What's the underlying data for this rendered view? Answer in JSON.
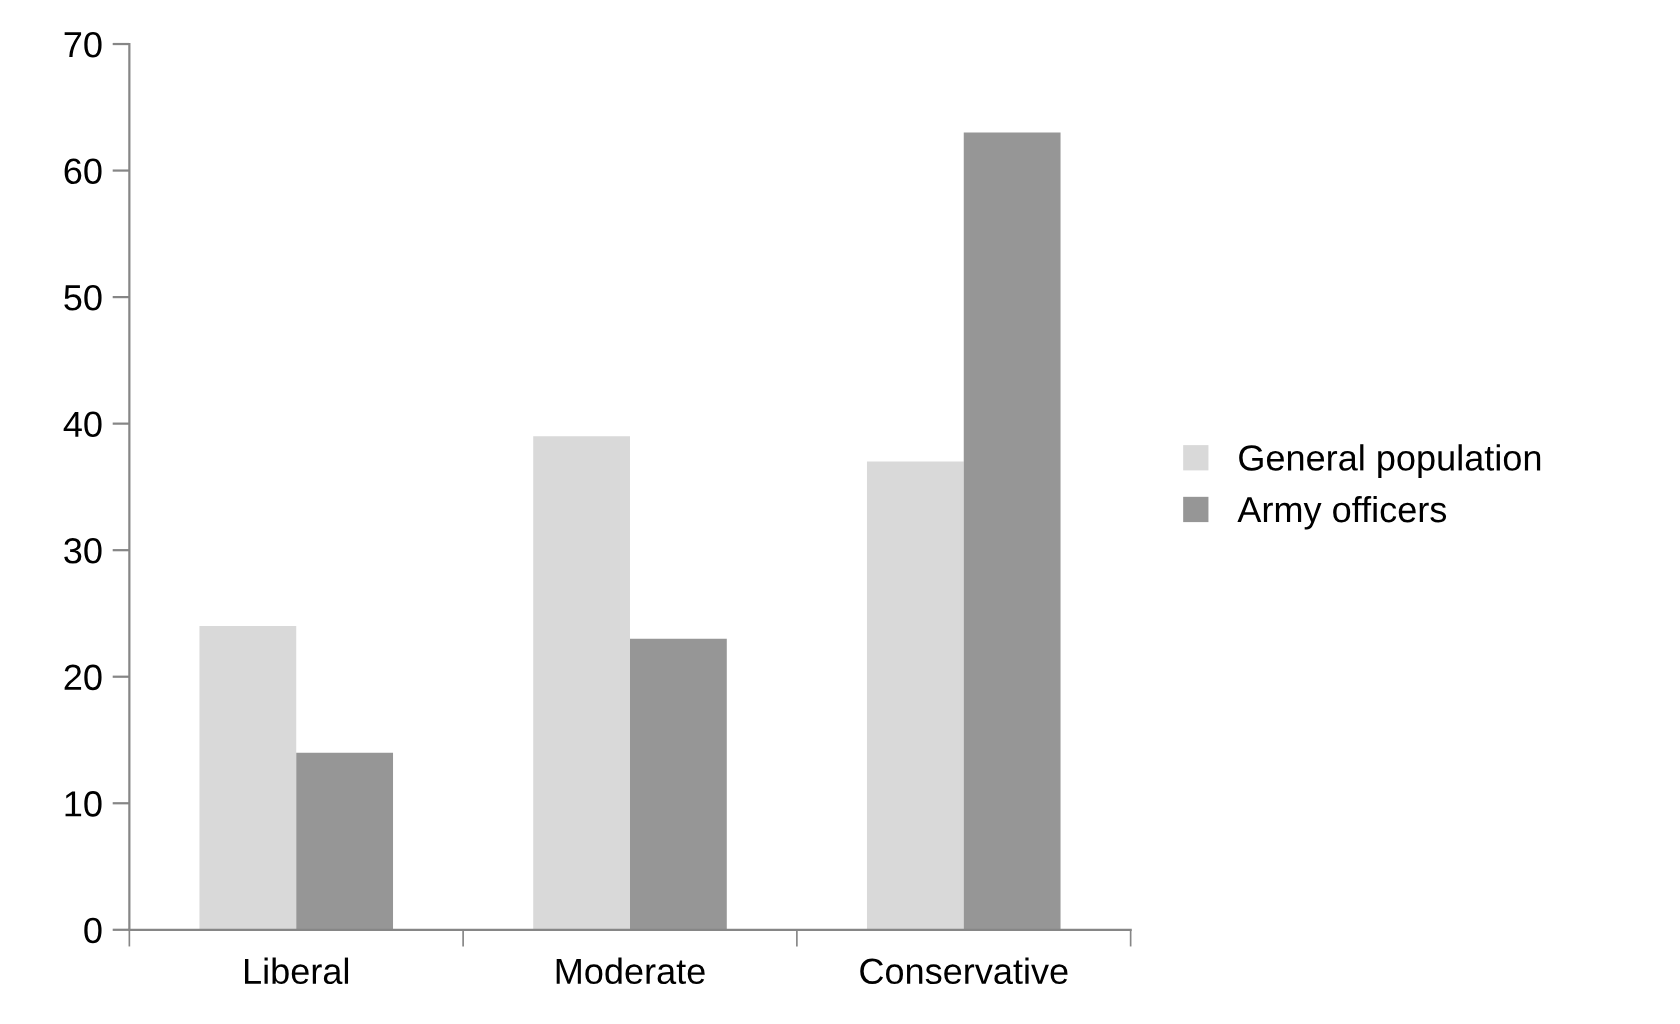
{
  "chart_data": {
    "type": "bar",
    "categories": [
      "Liberal",
      "Moderate",
      "Conservative"
    ],
    "series": [
      {
        "name": "General population",
        "color": "#d9d9d9",
        "values": [
          24,
          39,
          37
        ]
      },
      {
        "name": "Army officers",
        "color": "#969696",
        "values": [
          14,
          23,
          63
        ]
      }
    ],
    "ylim": [
      0,
      70
    ],
    "yticks": [
      0,
      10,
      20,
      30,
      40,
      50,
      60,
      70
    ],
    "grid": false,
    "legend": "right"
  }
}
